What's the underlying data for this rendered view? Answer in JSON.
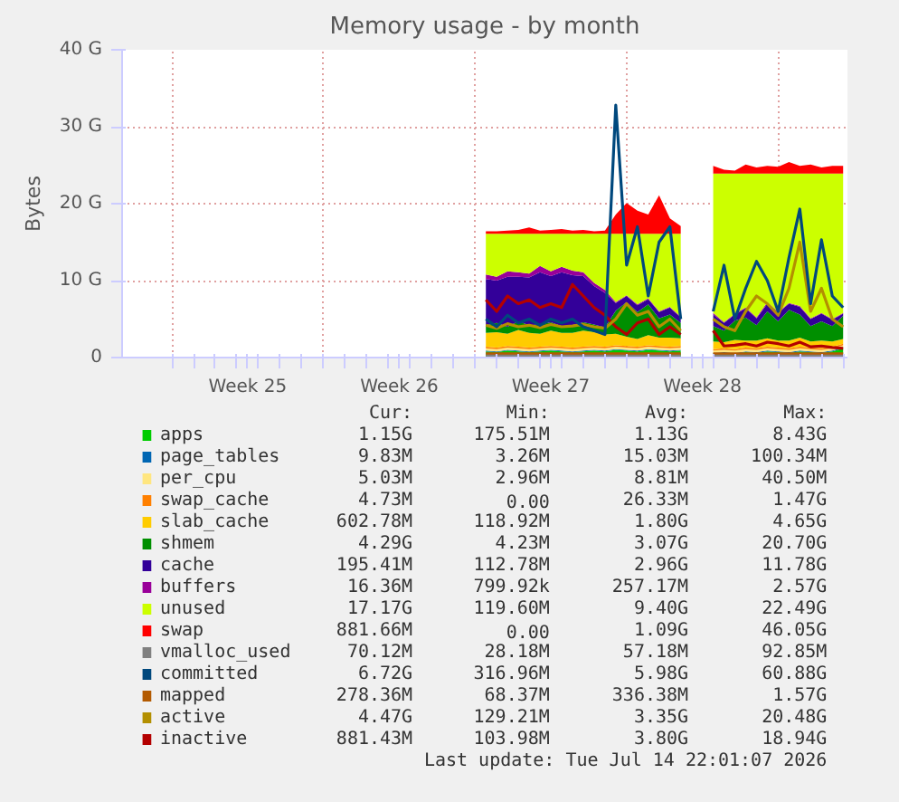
{
  "chart_data": {
    "type": "area",
    "stacked": true,
    "title": "Memory usage - by month",
    "ylabel": "Bytes",
    "categories": [
      null,
      null,
      null,
      null,
      null,
      null,
      null,
      "Week 25",
      null,
      null,
      null,
      null,
      null,
      null,
      null,
      null,
      null,
      null,
      null,
      null,
      null,
      "Week 26",
      null,
      null,
      null,
      null,
      null,
      null,
      null,
      null,
      null,
      null,
      null,
      null,
      null,
      "Week 27",
      null,
      null,
      null,
      null,
      null,
      null,
      null,
      null,
      null,
      null,
      null,
      null,
      null,
      "Week 28",
      null,
      null,
      null,
      null,
      null,
      null,
      null,
      null,
      null,
      null,
      null,
      null,
      null
    ],
    "ylim": [
      0,
      40
    ],
    "yticks": [
      {
        "value": 0,
        "label": "0"
      },
      {
        "value": 10,
        "label": "10 G"
      },
      {
        "value": 20,
        "label": "20 G"
      },
      {
        "value": 30,
        "label": "30 G"
      },
      {
        "value": 40,
        "label": "40 G"
      }
    ],
    "grid": true,
    "legend": "bottom",
    "series": [
      {
        "name": "apps",
        "color": "#00cc00",
        "values": [
          null,
          null,
          null,
          null,
          null,
          null,
          null,
          null,
          null,
          null,
          null,
          null,
          null,
          null,
          null,
          null,
          null,
          null,
          null,
          null,
          null,
          null,
          null,
          null,
          null,
          null,
          null,
          null,
          null,
          0.8,
          0.7,
          0.9,
          0.8,
          0.7,
          0.8,
          0.9,
          0.8,
          0.7,
          0.8,
          0.9,
          0.8,
          1.0,
          0.9,
          0.8,
          1.0,
          0.9,
          0.8,
          0.9,
          null,
          null,
          0.5,
          0.6,
          0.5,
          0.7,
          0.6,
          0.8,
          0.7,
          0.6,
          0.8,
          0.7,
          0.6,
          0.8,
          1.2
        ]
      },
      {
        "name": "page_tables",
        "color": "#0066b3",
        "values": [
          null,
          null,
          null,
          null,
          null,
          null,
          null,
          null,
          null,
          null,
          null,
          null,
          null,
          null,
          null,
          null,
          null,
          null,
          null,
          null,
          null,
          null,
          null,
          null,
          null,
          null,
          null,
          null,
          null,
          0.1,
          0.1,
          0.1,
          0.1,
          0.1,
          0.1,
          0.1,
          0.1,
          0.1,
          0.1,
          0.1,
          0.1,
          0.1,
          0.1,
          0.1,
          0.1,
          0.1,
          0.1,
          0.1,
          null,
          null,
          0.1,
          0.1,
          0.1,
          0.1,
          0.1,
          0.1,
          0.1,
          0.1,
          0.1,
          0.1,
          0.1,
          0.1,
          0.1
        ]
      },
      {
        "name": "per_cpu",
        "color": "#ffe680",
        "values": [
          null,
          null,
          null,
          null,
          null,
          null,
          null,
          null,
          null,
          null,
          null,
          null,
          null,
          null,
          null,
          null,
          null,
          null,
          null,
          null,
          null,
          null,
          null,
          null,
          null,
          null,
          null,
          null,
          null,
          0.3,
          0.3,
          0.3,
          0.3,
          0.3,
          0.3,
          0.3,
          0.3,
          0.3,
          0.3,
          0.3,
          0.3,
          0.3,
          0.3,
          0.3,
          0.3,
          0.3,
          0.3,
          0.3,
          null,
          null,
          0.3,
          0.3,
          0.3,
          0.3,
          0.3,
          0.3,
          0.3,
          0.3,
          0.3,
          0.3,
          0.3,
          0.3,
          0.3
        ]
      },
      {
        "name": "swap_cache",
        "color": "#ff8000",
        "values": [
          null,
          null,
          null,
          null,
          null,
          null,
          null,
          null,
          null,
          null,
          null,
          null,
          null,
          null,
          null,
          null,
          null,
          null,
          null,
          null,
          null,
          null,
          null,
          null,
          null,
          null,
          null,
          null,
          null,
          0.2,
          0.2,
          0.2,
          0.2,
          0.2,
          0.2,
          0.2,
          0.2,
          0.2,
          0.2,
          0.2,
          0.2,
          0.2,
          0.2,
          0.2,
          0.2,
          0.2,
          0.2,
          0.2,
          null,
          null,
          0.2,
          0.2,
          0.2,
          0.2,
          0.2,
          0.2,
          0.2,
          0.2,
          0.2,
          0.2,
          0.2,
          0.2,
          0.2
        ]
      },
      {
        "name": "slab_cache",
        "color": "#ffcc00",
        "values": [
          null,
          null,
          null,
          null,
          null,
          null,
          null,
          null,
          null,
          null,
          null,
          null,
          null,
          null,
          null,
          null,
          null,
          null,
          null,
          null,
          null,
          null,
          null,
          null,
          null,
          null,
          null,
          null,
          null,
          1.8,
          2.0,
          1.6,
          2.2,
          1.9,
          1.7,
          2.0,
          1.8,
          1.9,
          2.1,
          1.8,
          1.6,
          1.5,
          1.2,
          1.0,
          1.3,
          1.1,
          1.2,
          1.0,
          null,
          null,
          1.0,
          0.8,
          1.2,
          0.9,
          1.0,
          1.1,
          0.9,
          1.0,
          1.2,
          0.8,
          1.0,
          0.7,
          0.6
        ]
      },
      {
        "name": "shmem",
        "color": "#008f00",
        "values": [
          null,
          null,
          null,
          null,
          null,
          null,
          null,
          null,
          null,
          null,
          null,
          null,
          null,
          null,
          null,
          null,
          null,
          null,
          null,
          null,
          null,
          null,
          null,
          null,
          null,
          null,
          null,
          null,
          null,
          1.0,
          1.2,
          0.9,
          1.1,
          1.0,
          1.2,
          1.1,
          0.9,
          1.0,
          1.1,
          1.0,
          0.9,
          3.0,
          4.5,
          3.5,
          4.0,
          2.5,
          3.0,
          2.0,
          null,
          null,
          2.0,
          1.5,
          2.5,
          3.0,
          2.0,
          3.5,
          2.5,
          4.0,
          3.0,
          2.0,
          2.5,
          2.0,
          3.0
        ]
      },
      {
        "name": "cache",
        "color": "#330099",
        "values": [
          null,
          null,
          null,
          null,
          null,
          null,
          null,
          null,
          null,
          null,
          null,
          null,
          null,
          null,
          null,
          null,
          null,
          null,
          null,
          null,
          null,
          null,
          null,
          null,
          null,
          null,
          null,
          null,
          null,
          6.0,
          5.5,
          6.5,
          5.8,
          6.2,
          6.8,
          6.0,
          7.0,
          6.5,
          6.0,
          5.0,
          4.5,
          1.0,
          0.8,
          0.9,
          0.7,
          0.8,
          0.9,
          0.7,
          null,
          null,
          1.5,
          1.0,
          0.8,
          1.2,
          0.9,
          1.0,
          1.1,
          0.8,
          1.0,
          0.9,
          1.0,
          0.8,
          0.3
        ]
      },
      {
        "name": "buffers",
        "color": "#990099",
        "values": [
          null,
          null,
          null,
          null,
          null,
          null,
          null,
          null,
          null,
          null,
          null,
          null,
          null,
          null,
          null,
          null,
          null,
          null,
          null,
          null,
          null,
          null,
          null,
          null,
          null,
          null,
          null,
          null,
          null,
          0.6,
          0.5,
          0.7,
          0.6,
          0.5,
          0.8,
          0.6,
          0.7,
          0.6,
          0.5,
          0.4,
          0.4,
          0.1,
          0.1,
          0.1,
          0.1,
          0.1,
          0.1,
          0.1,
          null,
          null,
          0.2,
          0.1,
          0.1,
          0.1,
          0.1,
          0.2,
          0.1,
          0.1,
          0.1,
          0.1,
          0.1,
          0.1,
          0.1
        ]
      },
      {
        "name": "unused",
        "color": "#ccff00",
        "values": [
          null,
          null,
          null,
          null,
          null,
          null,
          null,
          null,
          null,
          null,
          null,
          null,
          null,
          null,
          null,
          null,
          null,
          null,
          null,
          null,
          null,
          null,
          null,
          null,
          null,
          null,
          null,
          null,
          null,
          5.3,
          5.6,
          4.9,
          5.0,
          5.2,
          4.2,
          4.9,
          4.3,
          4.8,
          5.0,
          6.4,
          7.3,
          8.9,
          8.0,
          9.2,
          8.4,
          10.1,
          9.5,
          10.8,
          null,
          null,
          18.1,
          19.3,
          18.2,
          17.4,
          18.7,
          16.7,
          18.0,
          16.8,
          17.2,
          18.8,
          18.1,
          18.9,
          18.1
        ]
      },
      {
        "name": "swap",
        "color": "#ff0000",
        "values": [
          null,
          null,
          null,
          null,
          null,
          null,
          null,
          null,
          null,
          null,
          null,
          null,
          null,
          null,
          null,
          null,
          null,
          null,
          null,
          null,
          null,
          null,
          null,
          null,
          null,
          null,
          null,
          null,
          null,
          0.3,
          0.3,
          0.4,
          0.5,
          0.8,
          0.4,
          0.5,
          0.6,
          0.4,
          0.5,
          0.3,
          0.4,
          2.5,
          4.0,
          3.0,
          2.5,
          5.0,
          2.0,
          1.0,
          null,
          null,
          1.0,
          0.5,
          0.4,
          1.2,
          0.8,
          1.0,
          0.9,
          1.5,
          1.0,
          1.2,
          0.8,
          1.0,
          1.0
        ]
      },
      {
        "name": "vmalloc_used",
        "type": "line",
        "color": "#808080",
        "values": [
          null,
          null,
          null,
          null,
          null,
          null,
          null,
          null,
          null,
          null,
          null,
          null,
          null,
          null,
          null,
          null,
          null,
          null,
          null,
          null,
          null,
          null,
          null,
          null,
          null,
          null,
          null,
          null,
          null,
          0.2,
          0.2,
          0.2,
          0.2,
          0.2,
          0.2,
          0.2,
          0.2,
          0.2,
          0.2,
          0.2,
          0.2,
          0.2,
          0.2,
          0.2,
          0.2,
          0.2,
          0.2,
          0.2,
          null,
          null,
          0.2,
          0.2,
          0.2,
          0.2,
          0.2,
          0.2,
          0.2,
          0.2,
          0.2,
          0.2,
          0.2,
          0.2,
          0.2
        ]
      },
      {
        "name": "committed",
        "type": "line",
        "color": "#00487d",
        "values": [
          null,
          null,
          null,
          null,
          null,
          null,
          null,
          null,
          null,
          null,
          null,
          null,
          null,
          null,
          null,
          null,
          null,
          null,
          null,
          null,
          null,
          null,
          null,
          null,
          null,
          null,
          null,
          null,
          null,
          5.0,
          4.0,
          5.5,
          4.5,
          5.0,
          4.2,
          5.0,
          4.5,
          5.0,
          4.0,
          3.5,
          3.0,
          32.8,
          12.0,
          17.0,
          8.0,
          15.0,
          17.0,
          5.0,
          null,
          null,
          6.0,
          12.0,
          5.0,
          9.0,
          12.5,
          10.0,
          6.0,
          13.0,
          19.3,
          7.0,
          15.3,
          8.0,
          6.5
        ]
      },
      {
        "name": "mapped",
        "type": "line",
        "color": "#b35a00",
        "values": [
          null,
          null,
          null,
          null,
          null,
          null,
          null,
          null,
          null,
          null,
          null,
          null,
          null,
          null,
          null,
          null,
          null,
          null,
          null,
          null,
          null,
          null,
          null,
          null,
          null,
          null,
          null,
          null,
          null,
          0.5,
          0.5,
          0.5,
          0.5,
          0.5,
          0.5,
          0.5,
          0.5,
          0.5,
          0.5,
          0.5,
          0.5,
          0.5,
          0.5,
          0.5,
          0.5,
          0.5,
          0.5,
          0.5,
          null,
          null,
          0.5,
          0.5,
          0.5,
          0.5,
          0.5,
          0.5,
          0.5,
          0.5,
          0.5,
          0.5,
          0.5,
          0.5,
          0.5
        ]
      },
      {
        "name": "active",
        "type": "line",
        "color": "#b38f00",
        "values": [
          null,
          null,
          null,
          null,
          null,
          null,
          null,
          null,
          null,
          null,
          null,
          null,
          null,
          null,
          null,
          null,
          null,
          null,
          null,
          null,
          null,
          null,
          null,
          null,
          null,
          null,
          null,
          null,
          null,
          4.2,
          3.8,
          4.4,
          4.0,
          4.2,
          3.9,
          4.3,
          4.0,
          4.1,
          4.3,
          4.0,
          3.8,
          5.0,
          7.0,
          5.5,
          6.0,
          4.0,
          5.0,
          3.5,
          null,
          null,
          5.0,
          4.0,
          3.5,
          6.0,
          8.0,
          7.0,
          5.5,
          9.0,
          15.0,
          6.0,
          9.0,
          5.0,
          4.0
        ]
      },
      {
        "name": "inactive",
        "type": "line",
        "color": "#b30000",
        "values": [
          null,
          null,
          null,
          null,
          null,
          null,
          null,
          null,
          null,
          null,
          null,
          null,
          null,
          null,
          null,
          null,
          null,
          null,
          null,
          null,
          null,
          null,
          null,
          null,
          null,
          null,
          null,
          null,
          null,
          7.5,
          6.0,
          8.0,
          7.0,
          7.5,
          6.5,
          7.0,
          6.5,
          9.5,
          8.0,
          6.5,
          5.5,
          4.0,
          3.0,
          4.5,
          5.0,
          3.0,
          4.0,
          3.0,
          null,
          null,
          3.5,
          1.5,
          1.6,
          1.8,
          1.5,
          2.0,
          1.8,
          1.5,
          2.0,
          1.4,
          1.5,
          1.3,
          1.2
        ]
      }
    ],
    "annotations": [
      "Cur: Min: Avg: Max:",
      "1.15G 175.51M 1.13G 8.43G",
      "9.83M 3.26M 15.03M 100.34M",
      "5.03M 2.96M 8.81M 40.50M",
      "4.73M 0.00 26.33M 1.47G",
      "602.78M 118.92M 1.80G 4.65G",
      "4.29G 4.23M 3.07G 20.70G",
      "195.41M 112.78M 2.96G 11.78G",
      "16.36M 799.92k 257.17M 2.57G",
      "17.17G 119.60M 9.40G 22.49G",
      "881.66M 0.00 1.09G 46.05G",
      "70.12M 28.18M 57.18M 92.85M",
      "6.72G 316.96M 5.98G 60.88G",
      "278.36M 68.37M 336.38M 1.57G",
      "4.47G 129.21M 3.35G 20.48G",
      "881.43M 103.98M 3.80G 18.94G",
      "Last update: Tue Jul 14 22:01:07 2026"
    ]
  }
}
